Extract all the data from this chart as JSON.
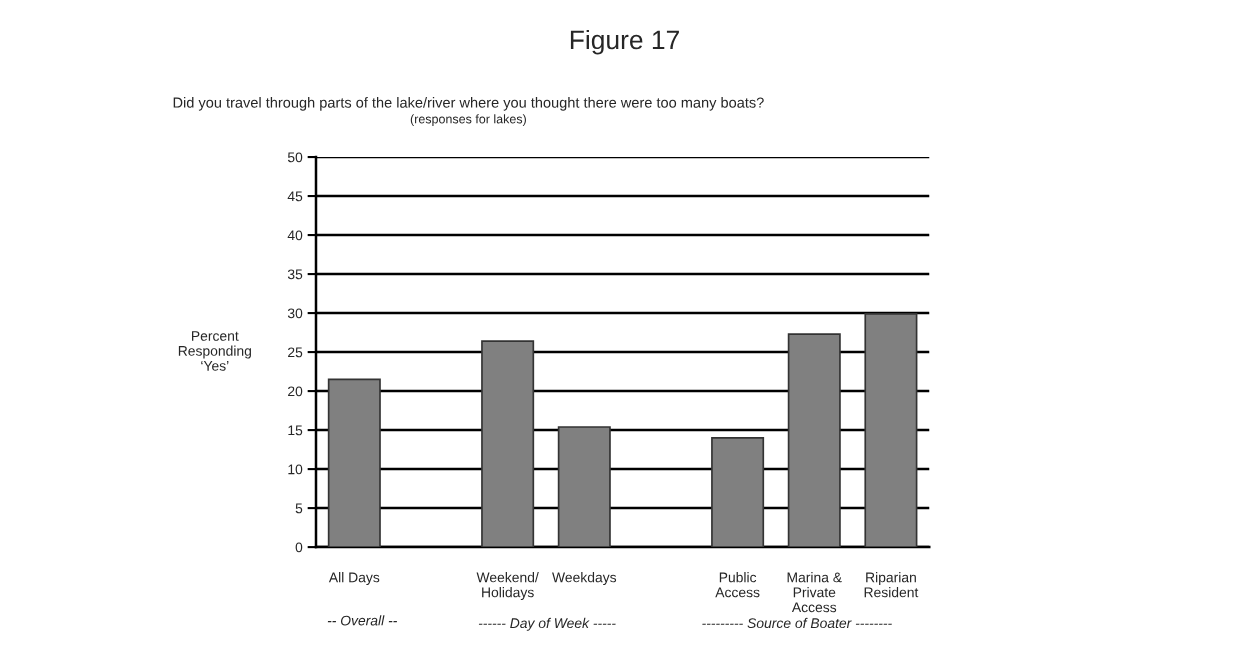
{
  "chart_data": {
    "type": "bar",
    "title": "Figure 17",
    "subtitle": "Did you travel through parts of the lake/river where you thought there were too many boats?",
    "ylabel": "Percent\nResponding\n‘Yes’",
    "categories": [
      "All Days",
      null,
      "Weekend/\nHolidays",
      "Weekdays",
      null,
      "Public\nAccess",
      "Marina &\nPrivate\nAccess",
      "Riparian\nResident"
    ],
    "values": [
      21.5,
      null,
      26.4,
      15.4,
      null,
      14.0,
      27.3,
      29.9
    ],
    "color": "#808080",
    "ylim": [
      0,
      50
    ],
    "yticks": [
      0,
      5,
      10,
      15,
      20,
      25,
      30,
      35,
      40,
      45,
      50
    ],
    "grid": "y",
    "legend": false,
    "annotations": [
      "(responses for lakes)",
      "-- Overall --",
      "------ Day of Week -----",
      "--------- Source of Boater --------"
    ]
  }
}
